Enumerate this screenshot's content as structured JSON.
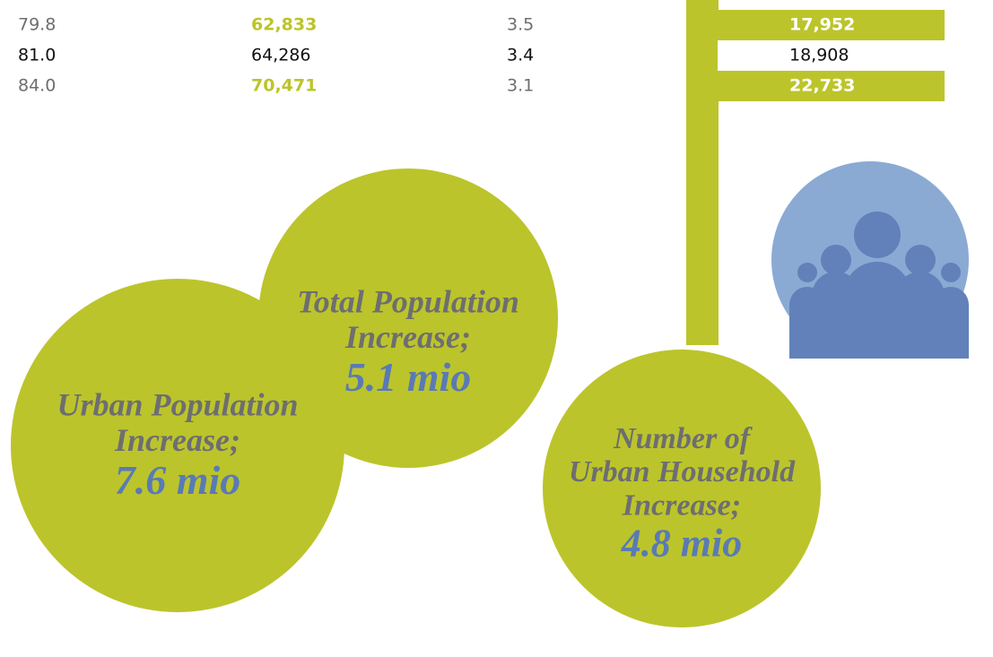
{
  "table": {
    "rows": [
      [
        "79.8",
        "62,833",
        "3.5",
        "17,952"
      ],
      [
        "81.0",
        "64,286",
        "3.4",
        "18,908"
      ],
      [
        "84.0",
        "70,471",
        "3.1",
        "22,733"
      ]
    ]
  },
  "circles": [
    {
      "lines": [
        "Urban Population",
        "Increase;"
      ],
      "value": "7.6 mio"
    },
    {
      "lines": [
        "Total Population",
        "Increase;"
      ],
      "value": "5.1 mio"
    },
    {
      "lines": [
        "Number of",
        "Urban Household",
        "Increase;"
      ],
      "value": "4.8 mio"
    }
  ]
}
